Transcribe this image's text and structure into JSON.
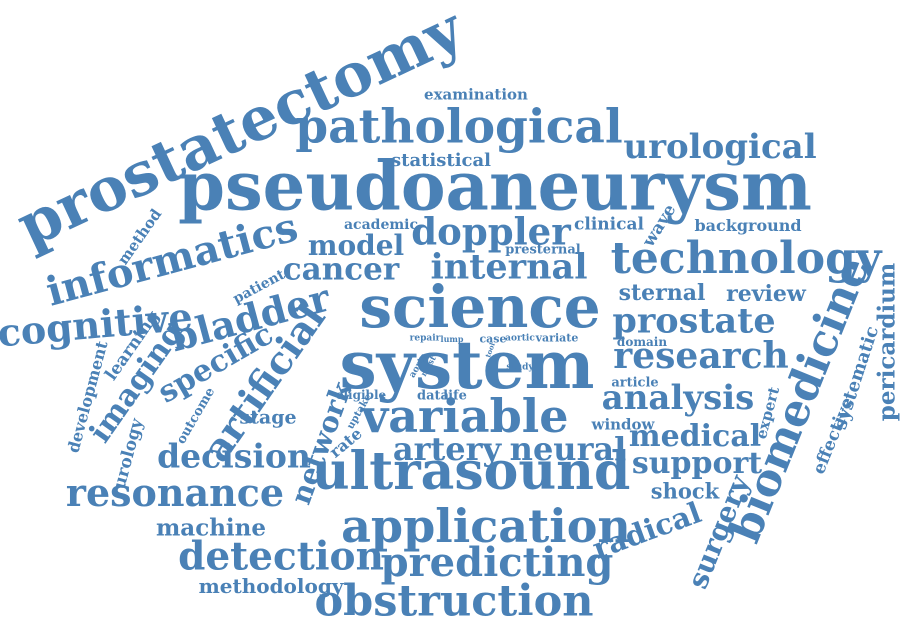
{
  "color": "#4a81b6",
  "words": [
    {
      "text": "prostatectomy"
    },
    {
      "text": "pseudoaneurysm"
    },
    {
      "text": "pathological"
    },
    {
      "text": "urological"
    },
    {
      "text": "examination"
    },
    {
      "text": "statistical"
    },
    {
      "text": "informatics"
    },
    {
      "text": "model"
    },
    {
      "text": "doppler"
    },
    {
      "text": "technology"
    },
    {
      "text": "background"
    },
    {
      "text": "clinical"
    },
    {
      "text": "wave"
    },
    {
      "text": "academic"
    },
    {
      "text": "method"
    },
    {
      "text": "presternal"
    },
    {
      "text": "cancer"
    },
    {
      "text": "internal"
    },
    {
      "text": "science"
    },
    {
      "text": "sternal"
    },
    {
      "text": "review"
    },
    {
      "text": "cognitive"
    },
    {
      "text": "bladder"
    },
    {
      "text": "prostate"
    },
    {
      "text": "patient"
    },
    {
      "text": "learning"
    },
    {
      "text": "imaging"
    },
    {
      "text": "specific"
    },
    {
      "text": "artificial"
    },
    {
      "text": "system"
    },
    {
      "text": "research"
    },
    {
      "text": "biomedicine"
    },
    {
      "text": "pericardium"
    },
    {
      "text": "systematic"
    },
    {
      "text": "effective"
    },
    {
      "text": "expert"
    },
    {
      "text": "development"
    },
    {
      "text": "urology"
    },
    {
      "text": "outcome"
    },
    {
      "text": "stage"
    },
    {
      "text": "network"
    },
    {
      "text": "variable"
    },
    {
      "text": "analysis"
    },
    {
      "text": "window"
    },
    {
      "text": "medical"
    },
    {
      "text": "decision"
    },
    {
      "text": "rate"
    },
    {
      "text": "uptake"
    },
    {
      "text": "eligible"
    },
    {
      "text": "data"
    },
    {
      "text": "life"
    },
    {
      "text": "repair"
    },
    {
      "text": "lump"
    },
    {
      "text": "case"
    },
    {
      "text": "aortic"
    },
    {
      "text": "variate"
    },
    {
      "text": "study"
    },
    {
      "text": "aorta"
    },
    {
      "text": "most"
    },
    {
      "text": "domain"
    },
    {
      "text": "article"
    },
    {
      "text": "artery"
    },
    {
      "text": "neural"
    },
    {
      "text": "support"
    },
    {
      "text": "resonance"
    },
    {
      "text": "ultrasound"
    },
    {
      "text": "shock"
    },
    {
      "text": "surgery"
    },
    {
      "text": "machine"
    },
    {
      "text": "application"
    },
    {
      "text": "radical"
    },
    {
      "text": "detection"
    },
    {
      "text": "predicting"
    },
    {
      "text": "methodology"
    },
    {
      "text": "obstruction"
    },
    {
      "text": "tool"
    }
  ]
}
